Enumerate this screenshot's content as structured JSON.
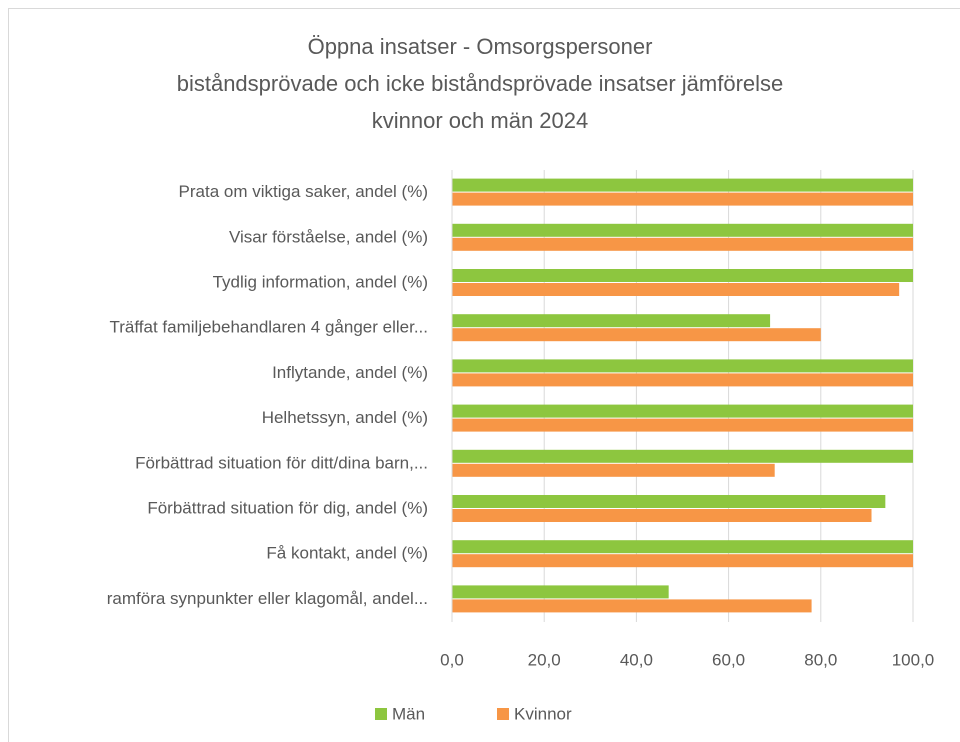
{
  "chart_data": {
    "type": "bar",
    "orientation": "horizontal",
    "title": [
      "Öppna insatser - Omsorgspersoner",
      "biståndsprövade och icke biståndsprövade insatser jämförelse",
      "kvinnor och män 2024"
    ],
    "categories": [
      "Prata om viktiga saker, andel (%)",
      "Visar förståelse, andel (%)",
      "Tydlig information, andel (%)",
      "Träffat familjebehandlaren 4 gånger eller...",
      "Inflytande, andel (%)",
      "Helhetssyn, andel (%)",
      "Förbättrad situation för ditt/dina barn,...",
      "Förbättrad situation för dig, andel (%)",
      "Få kontakt, andel (%)",
      "ramföra synpunkter eller klagomål, andel..."
    ],
    "series": [
      {
        "name": "Män",
        "color": "#8dc63f",
        "values": [
          100,
          100,
          100,
          69,
          100,
          100,
          100,
          94,
          100,
          47
        ]
      },
      {
        "name": "Kvinnor",
        "color": "#f79646",
        "values": [
          100,
          100,
          97,
          80,
          100,
          100,
          70,
          91,
          100,
          78
        ]
      }
    ],
    "xlim": [
      0,
      100
    ],
    "xticks": [
      {
        "value": 0,
        "label": "0,0"
      },
      {
        "value": 20,
        "label": "20,0"
      },
      {
        "value": 40,
        "label": "40,0"
      },
      {
        "value": 60,
        "label": "60,0"
      },
      {
        "value": 80,
        "label": "80,0"
      },
      {
        "value": 100,
        "label": "100,0"
      }
    ],
    "grid": true,
    "legend": "bottom"
  }
}
